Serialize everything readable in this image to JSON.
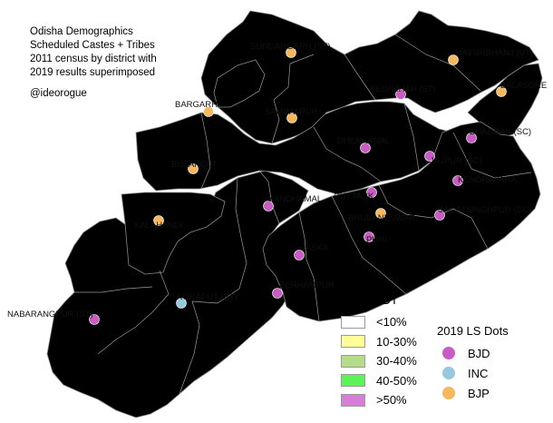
{
  "title_lines": [
    "Odisha Demographics",
    "Scheduled Castes + Tribes",
    "2011 census by district with",
    "2019 results superimposed"
  ],
  "credit": "@ideorogue",
  "colors": {
    "lt10": "#ffffff",
    "b10_30": "#ffff99",
    "b30_40": "#b5dc8a",
    "b40_50": "#5ef25a",
    "gt50": "#d57fd8",
    "bjd": "#c95bc4",
    "inc": "#96c9e0",
    "bjp": "#f7b75d"
  },
  "legend_dt": {
    "title": "SC+ST DT",
    "items": [
      {
        "label": "<10%",
        "color": "#ffffff"
      },
      {
        "label": "10-30%",
        "color": "#ffff99"
      },
      {
        "label": "30-40%",
        "color": "#b5dc8a"
      },
      {
        "label": "40-50%",
        "color": "#5ef25a"
      },
      {
        "label": ">50%",
        "color": "#d57fd8"
      }
    ]
  },
  "legend_ls": {
    "title": "2019 LS Dots",
    "items": [
      {
        "label": "BJD",
        "color": "#c95bc4"
      },
      {
        "label": "INC",
        "color": "#96c9e0"
      },
      {
        "label": "BJP",
        "color": "#f7b75d"
      }
    ]
  },
  "constituencies": [
    {
      "name": "SUNDARGARH (ST)",
      "party": "BJP"
    },
    {
      "name": "MAYURBHANJ (ST)",
      "party": "BJP"
    },
    {
      "name": "BALASORE",
      "party": "BJP"
    },
    {
      "name": "KEONJHAR (ST)",
      "party": "BJD"
    },
    {
      "name": "BARGARH",
      "party": "BJP"
    },
    {
      "name": "SAMBALPUR",
      "party": "BJP"
    },
    {
      "name": "BHADRAK (SC)",
      "party": "BJD"
    },
    {
      "name": "DHENKANAL",
      "party": "BJD"
    },
    {
      "name": "JAJPUR (SC)",
      "party": "BJD"
    },
    {
      "name": "BOLANGIR",
      "party": "BJP"
    },
    {
      "name": "KENDRAPARA",
      "party": "BJD"
    },
    {
      "name": "CUTTACK",
      "party": "BJD"
    },
    {
      "name": "KANDHAMAL",
      "party": "BJD"
    },
    {
      "name": "JAGATSINGHPUR (SC)",
      "party": "BJD"
    },
    {
      "name": "BHUBANESWAR",
      "party": "BJP"
    },
    {
      "name": "KALAHANDI",
      "party": "BJP"
    },
    {
      "name": "PURI",
      "party": "BJD"
    },
    {
      "name": "ASKA",
      "party": "BJD"
    },
    {
      "name": "BERHAMPUR",
      "party": "BJD"
    },
    {
      "name": "KORAPUT (ST)",
      "party": "INC"
    },
    {
      "name": "NABARANGPUR (ST)",
      "party": "BJD"
    }
  ]
}
